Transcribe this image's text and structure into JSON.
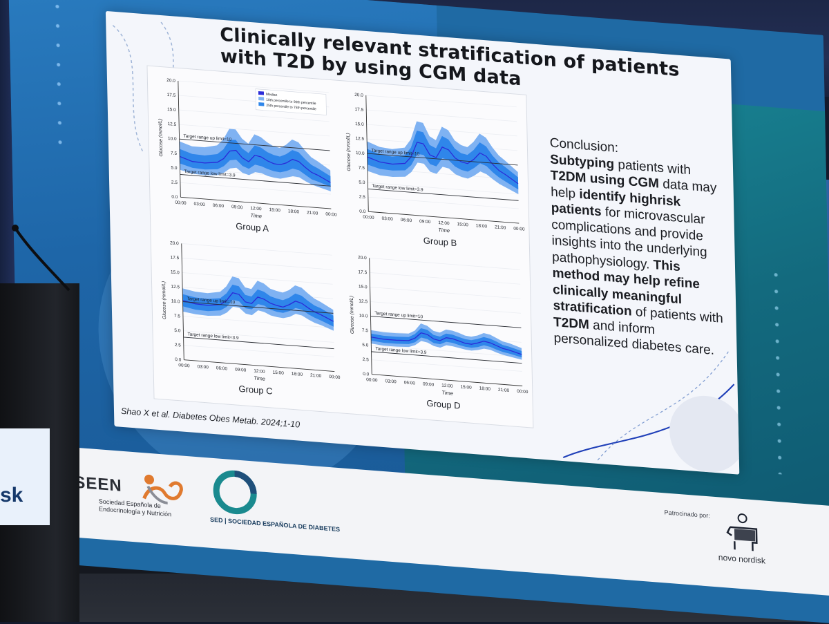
{
  "slide": {
    "title": "Clinically relevant stratification of patients with T2D by using CGM data",
    "citation": "Shao X et al. Diabetes Obes Metab. 2024;1-10"
  },
  "conclusion": {
    "heading": "Conclusion:",
    "segments": [
      {
        "text": "Subtyping",
        "bold": true
      },
      {
        "text": " patients with ",
        "bold": false
      },
      {
        "text": "T2DM using CGM",
        "bold": true
      },
      {
        "text": " data may help ",
        "bold": false
      },
      {
        "text": "identify highrisk patients",
        "bold": true
      },
      {
        "text": " for microvascular complications and provide insights into the underlying pathophysiology. ",
        "bold": false
      },
      {
        "text": "This method may help refine clinically meaningful stratification",
        "bold": true
      },
      {
        "text": " of patients with ",
        "bold": false
      },
      {
        "text": "T2DM",
        "bold": true
      },
      {
        "text": " and inform personalized diabetes care.",
        "bold": false
      }
    ]
  },
  "footer": {
    "seen_acronym": "SEEN",
    "seen_name_line1": "Sociedad Española de",
    "seen_name_line2": "Endocrinología y Nutrición",
    "sed_label": "SED | SOCIEDAD ESPAÑOLA DE DIABETES",
    "sponsor_label": "Patrocinado por:",
    "sponsor_name": "novo nordisk"
  },
  "podium": {
    "text": "sk"
  },
  "colors": {
    "median": "#2b2bd8",
    "band_outer": "#7fb2f2",
    "band_inner": "#2f86ea",
    "title": "#15171c"
  },
  "chart_data": [
    {
      "type": "line",
      "group": "Group A",
      "xlabel": "Time",
      "ylabel": "Glucose (mmol/L)",
      "ylim": [
        0,
        20
      ],
      "yticks": [
        "0.0",
        "2.5",
        "5.0",
        "7.5",
        "10.0",
        "12.5",
        "15.0",
        "17.5",
        "20.0"
      ],
      "xticks": [
        "00:00",
        "03:00",
        "06:00",
        "09:00",
        "12:00",
        "15:00",
        "18:00",
        "21:00",
        "00:00"
      ],
      "legend": [
        "Median",
        "10th percentile to 90th percentile",
        "25th percentile to 75th percentile"
      ],
      "x": [
        0,
        2,
        4,
        6,
        7,
        8,
        9,
        10,
        11,
        12,
        13,
        14,
        15,
        16,
        17,
        18,
        19,
        20,
        21,
        22,
        24
      ],
      "series": [
        {
          "name": "Median",
          "values": [
            7.0,
            6.3,
            6.2,
            6.5,
            7.2,
            8.6,
            8.8,
            7.6,
            7.0,
            8.2,
            8.0,
            7.4,
            7.0,
            6.9,
            7.3,
            8.0,
            7.7,
            6.8,
            6.0,
            5.6,
            4.5
          ]
        },
        {
          "name": "25th–75th lower",
          "values": [
            5.8,
            5.2,
            5.1,
            5.3,
            5.9,
            7.0,
            7.2,
            6.2,
            5.8,
            6.6,
            6.4,
            6.0,
            5.7,
            5.6,
            5.9,
            6.4,
            6.2,
            5.5,
            4.8,
            4.5,
            3.8
          ]
        },
        {
          "name": "25th–75th upper",
          "values": [
            8.3,
            7.6,
            7.5,
            7.9,
            8.8,
            10.5,
            10.6,
            9.2,
            8.5,
            9.9,
            9.6,
            8.9,
            8.5,
            8.3,
            8.8,
            9.6,
            9.3,
            8.2,
            7.3,
            6.8,
            5.6
          ]
        },
        {
          "name": "10th–90th lower",
          "values": [
            4.7,
            4.2,
            4.1,
            4.3,
            4.8,
            5.6,
            5.8,
            5.0,
            4.7,
            5.3,
            5.2,
            4.8,
            4.6,
            4.5,
            4.8,
            5.1,
            5.0,
            4.4,
            3.9,
            3.6,
            3.0
          ]
        },
        {
          "name": "10th–90th upper",
          "values": [
            9.6,
            8.9,
            8.9,
            9.4,
            10.5,
            12.4,
            12.4,
            10.9,
            10.1,
            11.8,
            11.4,
            10.6,
            10.0,
            9.8,
            10.4,
            11.4,
            11.0,
            9.7,
            8.6,
            8.0,
            6.6
          ]
        }
      ],
      "annotations": [
        {
          "text": "Target range up limit=10",
          "y": 10
        },
        {
          "text": "Target range low limit=3.9",
          "y": 3.9
        }
      ]
    },
    {
      "type": "line",
      "group": "Group B",
      "xlabel": "Time",
      "ylabel": "Glucose (mmol/L)",
      "ylim": [
        0,
        20
      ],
      "yticks": [
        "0.0",
        "2.5",
        "5.0",
        "7.5",
        "10.0",
        "12.5",
        "15.0",
        "17.5",
        "20.0"
      ],
      "xticks": [
        "00:00",
        "03:00",
        "06:00",
        "09:00",
        "12:00",
        "15:00",
        "18:00",
        "21:00",
        "00:00"
      ],
      "x": [
        0,
        2,
        4,
        6,
        7,
        8,
        9,
        10,
        11,
        12,
        13,
        14,
        15,
        16,
        17,
        18,
        19,
        20,
        21,
        22,
        24
      ],
      "series": [
        {
          "name": "Median",
          "values": [
            9.4,
            8.7,
            8.5,
            8.8,
            10.0,
            12.6,
            12.4,
            10.6,
            10.2,
            12.1,
            11.7,
            10.4,
            9.8,
            9.6,
            10.4,
            11.6,
            11.1,
            9.8,
            8.8,
            8.2,
            6.8
          ]
        },
        {
          "name": "25th–75th lower",
          "values": [
            8.1,
            7.5,
            7.4,
            7.6,
            8.6,
            10.6,
            10.5,
            9.0,
            8.7,
            10.2,
            9.9,
            8.9,
            8.4,
            8.2,
            8.9,
            9.8,
            9.4,
            8.4,
            7.6,
            7.0,
            5.8
          ]
        },
        {
          "name": "25th–75th upper",
          "values": [
            10.8,
            10.0,
            9.8,
            10.2,
            11.6,
            14.6,
            14.4,
            12.3,
            11.8,
            14.0,
            13.5,
            12.0,
            11.3,
            11.1,
            12.0,
            13.4,
            12.8,
            11.3,
            10.2,
            9.5,
            7.9
          ]
        },
        {
          "name": "10th–90th lower",
          "values": [
            7.0,
            6.4,
            6.3,
            6.5,
            7.4,
            9.1,
            9.0,
            7.7,
            7.4,
            8.7,
            8.5,
            7.6,
            7.2,
            7.0,
            7.6,
            8.4,
            8.0,
            7.2,
            6.5,
            6.0,
            5.0
          ]
        },
        {
          "name": "10th–90th upper",
          "values": [
            12.1,
            11.3,
            11.1,
            11.5,
            13.0,
            16.2,
            16.0,
            13.8,
            13.2,
            15.6,
            15.1,
            13.4,
            12.7,
            12.4,
            13.4,
            14.9,
            14.3,
            12.7,
            11.4,
            10.6,
            8.8
          ]
        }
      ],
      "annotations": [
        {
          "text": "Target range up limit=10",
          "y": 10
        },
        {
          "text": "Target range low limit=3.9",
          "y": 3.9
        }
      ]
    },
    {
      "type": "line",
      "group": "Group C",
      "xlabel": "Time",
      "ylabel": "Glucose (mmol/L)",
      "ylim": [
        0,
        20
      ],
      "yticks": [
        "0.0",
        "2.5",
        "5.0",
        "7.5",
        "10.0",
        "12.5",
        "15.0",
        "17.5",
        "20.0"
      ],
      "xticks": [
        "00:00",
        "03:00",
        "06:00",
        "09:00",
        "12:00",
        "15:00",
        "18:00",
        "21:00",
        "00:00"
      ],
      "x": [
        0,
        2,
        4,
        6,
        7,
        8,
        9,
        10,
        11,
        12,
        13,
        14,
        15,
        16,
        17,
        18,
        19,
        20,
        21,
        22,
        24
      ],
      "series": [
        {
          "name": "Median",
          "values": [
            10.2,
            9.8,
            9.7,
            10.0,
            10.8,
            12.2,
            12.0,
            10.8,
            10.6,
            11.8,
            11.5,
            10.9,
            10.6,
            10.4,
            10.9,
            11.6,
            11.3,
            10.6,
            10.0,
            9.6,
            8.6
          ]
        },
        {
          "name": "25th–75th lower",
          "values": [
            9.2,
            8.8,
            8.7,
            9.0,
            9.7,
            11.0,
            10.8,
            9.7,
            9.6,
            10.6,
            10.4,
            9.8,
            9.5,
            9.4,
            9.8,
            10.4,
            10.2,
            9.5,
            9.0,
            8.6,
            7.7
          ]
        },
        {
          "name": "25th–75th upper",
          "values": [
            11.3,
            10.9,
            10.8,
            11.1,
            12.0,
            13.6,
            13.4,
            12.0,
            11.8,
            13.1,
            12.8,
            12.1,
            11.8,
            11.6,
            12.1,
            12.9,
            12.6,
            11.8,
            11.1,
            10.7,
            9.6
          ]
        },
        {
          "name": "10th–90th lower",
          "values": [
            8.3,
            8.0,
            7.9,
            8.1,
            8.7,
            9.8,
            9.7,
            8.8,
            8.6,
            9.5,
            9.3,
            8.8,
            8.6,
            8.5,
            8.8,
            9.4,
            9.2,
            8.6,
            8.1,
            7.8,
            7.0
          ]
        },
        {
          "name": "10th–90th upper",
          "values": [
            12.3,
            11.9,
            11.8,
            12.2,
            13.2,
            15.0,
            14.8,
            13.3,
            13.1,
            14.6,
            14.2,
            13.4,
            13.1,
            12.9,
            13.4,
            14.3,
            14.0,
            13.1,
            12.3,
            11.8,
            10.6
          ]
        }
      ],
      "annotations": [
        {
          "text": "Target range up limit=10",
          "y": 10
        },
        {
          "text": "Target range low limit=3.9",
          "y": 3.9
        }
      ]
    },
    {
      "type": "line",
      "group": "Group D",
      "xlabel": "Time",
      "ylabel": "Glucose (mmol/L)",
      "ylim": [
        0,
        20
      ],
      "yticks": [
        "0.0",
        "2.5",
        "5.0",
        "7.5",
        "10.0",
        "12.5",
        "15.0",
        "17.5",
        "20.0"
      ],
      "xticks": [
        "00:00",
        "03:00",
        "06:00",
        "09:00",
        "12:00",
        "15:00",
        "18:00",
        "21:00",
        "00:00"
      ],
      "x": [
        0,
        2,
        4,
        6,
        7,
        8,
        9,
        10,
        11,
        12,
        13,
        14,
        15,
        16,
        17,
        18,
        19,
        20,
        21,
        22,
        24
      ],
      "series": [
        {
          "name": "Median",
          "values": [
            6.4,
            6.2,
            6.2,
            6.3,
            6.8,
            7.8,
            7.6,
            6.9,
            6.7,
            7.3,
            7.2,
            6.9,
            6.6,
            6.5,
            6.8,
            7.2,
            7.0,
            6.6,
            6.2,
            6.0,
            5.4
          ]
        },
        {
          "name": "25th–75th lower",
          "values": [
            5.8,
            5.6,
            5.6,
            5.7,
            6.1,
            7.0,
            6.8,
            6.2,
            6.1,
            6.6,
            6.5,
            6.2,
            6.0,
            5.9,
            6.1,
            6.5,
            6.3,
            5.9,
            5.6,
            5.4,
            4.9
          ]
        },
        {
          "name": "25th–75th upper",
          "values": [
            7.0,
            6.8,
            6.8,
            6.9,
            7.5,
            8.6,
            8.4,
            7.6,
            7.4,
            8.0,
            7.9,
            7.6,
            7.3,
            7.2,
            7.5,
            7.9,
            7.7,
            7.3,
            6.8,
            6.6,
            6.0
          ]
        },
        {
          "name": "10th–90th lower",
          "values": [
            5.3,
            5.1,
            5.1,
            5.2,
            5.6,
            6.4,
            6.2,
            5.7,
            5.5,
            6.0,
            5.9,
            5.7,
            5.5,
            5.4,
            5.6,
            5.9,
            5.8,
            5.4,
            5.1,
            4.9,
            4.5
          ]
        },
        {
          "name": "10th–90th upper",
          "values": [
            7.6,
            7.4,
            7.4,
            7.5,
            8.1,
            9.4,
            9.1,
            8.3,
            8.1,
            8.7,
            8.6,
            8.3,
            7.9,
            7.8,
            8.1,
            8.6,
            8.4,
            7.9,
            7.4,
            7.2,
            6.5
          ]
        }
      ],
      "annotations": [
        {
          "text": "Target range up limit=10",
          "y": 10
        },
        {
          "text": "Target range low limit=3.9",
          "y": 3.9
        }
      ]
    }
  ]
}
